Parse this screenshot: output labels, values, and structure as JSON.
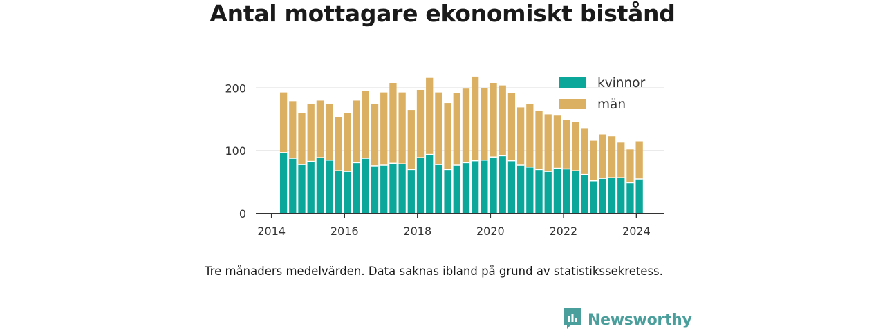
{
  "title": "Antal mottagare ekonomiskt bistånd",
  "note": "Tre månaders medelvärden. Data saknas ibland på grund av statistikssekretess.",
  "brand": {
    "name": "Newsworthy",
    "icon": "newsworthy-logo-icon",
    "color": "#4a9f9c"
  },
  "colors": {
    "kvinnor": "#0aa79a",
    "man": "#dcb062",
    "grid": "#dddddd",
    "axis": "#333333"
  },
  "chart_data": {
    "type": "bar",
    "stacked": true,
    "title": "Antal mottagare ekonomiskt bistånd",
    "xlabel": "",
    "ylabel": "",
    "ylim": [
      0,
      230
    ],
    "y_ticks": [
      0,
      100,
      200
    ],
    "x_ticks": [
      "2014",
      "2016",
      "2018",
      "2020",
      "2022",
      "2024"
    ],
    "x_tick_values": [
      2014,
      2016,
      2018,
      2020,
      2022,
      2024
    ],
    "grid": true,
    "legend_position": "top-right",
    "x": [
      2014.33,
      2014.58,
      2014.83,
      2015.08,
      2015.33,
      2015.58,
      2015.83,
      2016.08,
      2016.33,
      2016.58,
      2016.83,
      2017.08,
      2017.33,
      2017.58,
      2017.83,
      2018.08,
      2018.33,
      2018.58,
      2018.83,
      2019.08,
      2019.33,
      2019.58,
      2019.83,
      2020.08,
      2020.33,
      2020.58,
      2020.83,
      2021.08,
      2021.33,
      2021.58,
      2021.83,
      2022.08,
      2022.33,
      2022.58,
      2022.83,
      2023.08,
      2023.33,
      2023.58,
      2023.83,
      2024.08
    ],
    "series": [
      {
        "name": "kvinnor",
        "values": [
          97,
          88,
          78,
          83,
          89,
          85,
          68,
          67,
          81,
          88,
          76,
          77,
          80,
          79,
          70,
          89,
          94,
          78,
          70,
          77,
          81,
          84,
          85,
          90,
          92,
          84,
          77,
          74,
          70,
          67,
          72,
          71,
          68,
          62,
          52,
          56,
          57,
          57,
          49,
          55
        ]
      },
      {
        "name": "män",
        "values": [
          96,
          91,
          82,
          92,
          91,
          90,
          86,
          93,
          99,
          107,
          99,
          116,
          128,
          114,
          95,
          108,
          122,
          115,
          106,
          115,
          118,
          134,
          115,
          118,
          112,
          108,
          92,
          101,
          94,
          91,
          84,
          78,
          78,
          74,
          64,
          70,
          66,
          56,
          53,
          60
        ]
      }
    ]
  }
}
